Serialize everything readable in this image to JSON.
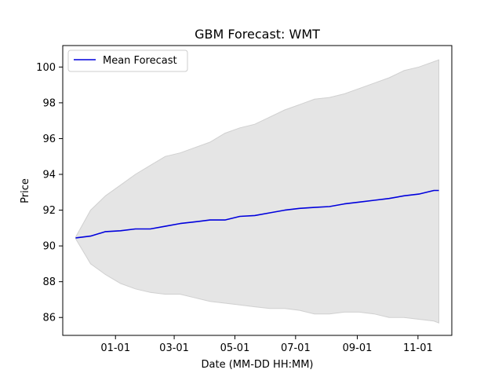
{
  "chart_data": {
    "type": "line",
    "title": "GBM Forecast: WMT",
    "xlabel": "Date (MM-DD HH:MM)",
    "ylabel": "Price",
    "x_tick_labels": [
      "01-01",
      "03-01",
      "05-01",
      "07-01",
      "09-01",
      "11-01"
    ],
    "x_tick_dates": [
      "2025-01-01",
      "2025-03-01",
      "2025-05-01",
      "2025-07-01",
      "2025-09-01",
      "2025-11-01"
    ],
    "xlim": [
      "2024-11-09",
      "2025-12-05"
    ],
    "y_ticks": [
      86,
      88,
      90,
      92,
      94,
      96,
      98,
      100
    ],
    "ylim": [
      85.0,
      101.2
    ],
    "grid": false,
    "legend": {
      "placement": "top-left",
      "entries": [
        "Mean Forecast"
      ]
    },
    "colors": {
      "mean_line": "#0000dd",
      "band_fill": "#e5e5e5",
      "band_edge": "#d0d0d0"
    },
    "series": [
      {
        "name": "Mean Forecast",
        "role": "line",
        "x": [
          "2024-11-22",
          "2024-12-07",
          "2024-12-22",
          "2025-01-06",
          "2025-01-21",
          "2025-02-05",
          "2025-02-20",
          "2025-03-07",
          "2025-03-22",
          "2025-04-06",
          "2025-04-21",
          "2025-05-06",
          "2025-05-21",
          "2025-06-05",
          "2025-06-20",
          "2025-07-05",
          "2025-07-20",
          "2025-08-04",
          "2025-08-19",
          "2025-09-03",
          "2025-09-18",
          "2025-10-03",
          "2025-10-18",
          "2025-11-02",
          "2025-11-17",
          "2025-11-22"
        ],
        "y": [
          90.45,
          90.55,
          90.8,
          90.85,
          90.95,
          90.95,
          91.1,
          91.25,
          91.35,
          91.45,
          91.45,
          91.65,
          91.7,
          91.85,
          92.0,
          92.1,
          92.15,
          92.2,
          92.35,
          92.45,
          92.55,
          92.65,
          92.8,
          92.9,
          93.1,
          93.1
        ]
      },
      {
        "name": "",
        "role": "band_upper",
        "x": [
          "2024-11-22",
          "2024-12-07",
          "2024-12-22",
          "2025-01-06",
          "2025-01-21",
          "2025-02-05",
          "2025-02-20",
          "2025-03-07",
          "2025-03-22",
          "2025-04-06",
          "2025-04-21",
          "2025-05-06",
          "2025-05-21",
          "2025-06-05",
          "2025-06-20",
          "2025-07-05",
          "2025-07-20",
          "2025-08-04",
          "2025-08-19",
          "2025-09-03",
          "2025-09-18",
          "2025-10-03",
          "2025-10-18",
          "2025-11-02",
          "2025-11-17",
          "2025-11-22"
        ],
        "y": [
          90.5,
          92.0,
          92.8,
          93.4,
          94.0,
          94.5,
          95.0,
          95.2,
          95.5,
          95.8,
          96.3,
          96.6,
          96.8,
          97.2,
          97.6,
          97.9,
          98.2,
          98.3,
          98.5,
          98.8,
          99.1,
          99.4,
          99.8,
          100.0,
          100.3,
          100.4
        ]
      },
      {
        "name": "",
        "role": "band_lower",
        "x": [
          "2024-11-22",
          "2024-12-07",
          "2024-12-22",
          "2025-01-06",
          "2025-01-21",
          "2025-02-05",
          "2025-02-20",
          "2025-03-07",
          "2025-03-22",
          "2025-04-06",
          "2025-04-21",
          "2025-05-06",
          "2025-05-21",
          "2025-06-05",
          "2025-06-20",
          "2025-07-05",
          "2025-07-20",
          "2025-08-04",
          "2025-08-19",
          "2025-09-03",
          "2025-09-18",
          "2025-10-03",
          "2025-10-18",
          "2025-11-02",
          "2025-11-17",
          "2025-11-22"
        ],
        "y": [
          90.4,
          89.0,
          88.4,
          87.9,
          87.6,
          87.4,
          87.3,
          87.3,
          87.1,
          86.9,
          86.8,
          86.7,
          86.6,
          86.5,
          86.5,
          86.4,
          86.2,
          86.2,
          86.3,
          86.3,
          86.2,
          86.0,
          86.0,
          85.9,
          85.8,
          85.7
        ]
      }
    ]
  }
}
